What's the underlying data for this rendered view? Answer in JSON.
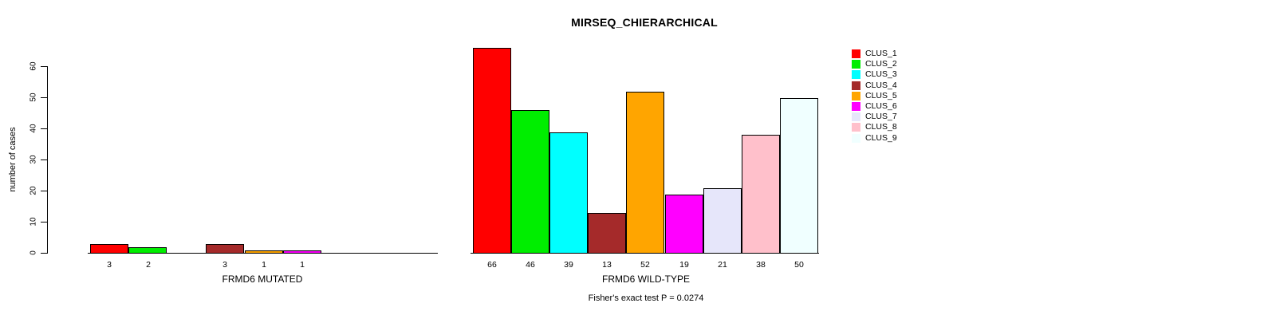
{
  "title": "MIRSEQ_CHIERARCHICAL",
  "chart_data": {
    "type": "bar",
    "title": "MIRSEQ_CHIERARCHICAL",
    "ylabel": "number of cases",
    "ylim": [
      0,
      60
    ],
    "yticks": [
      0,
      10,
      20,
      30,
      40,
      50,
      60
    ],
    "grid": false,
    "legend_position": "right",
    "categories": [
      "CLUS_1",
      "CLUS_2",
      "CLUS_3",
      "CLUS_4",
      "CLUS_5",
      "CLUS_6",
      "CLUS_7",
      "CLUS_8",
      "CLUS_9"
    ],
    "colors": [
      "#FF0000",
      "#00EE00",
      "#00FFFF",
      "#A52A2A",
      "#FFA500",
      "#FF00FF",
      "#E6E6FA",
      "#FFC0CB",
      "#F0FFFF"
    ],
    "series": [
      {
        "name": "FRMD6 MUTATED",
        "xlabel": "FRMD6 MUTATED",
        "values": [
          3,
          2,
          0,
          3,
          1,
          1,
          0,
          0,
          0
        ]
      },
      {
        "name": "FRMD6 WILD-TYPE",
        "xlabel": "FRMD6 WILD-TYPE",
        "values": [
          66,
          46,
          39,
          13,
          52,
          19,
          21,
          38,
          50
        ]
      }
    ],
    "bar_value_labels": true,
    "footnote": "Fisher's exact test P = 0.0274"
  },
  "legend": {
    "items": [
      {
        "label": "CLUS_1",
        "color": "#FF0000"
      },
      {
        "label": "CLUS_2",
        "color": "#00EE00"
      },
      {
        "label": "CLUS_3",
        "color": "#00FFFF"
      },
      {
        "label": "CLUS_4",
        "color": "#A52A2A"
      },
      {
        "label": "CLUS_5",
        "color": "#FFA500"
      },
      {
        "label": "CLUS_6",
        "color": "#FF00FF"
      },
      {
        "label": "CLUS_7",
        "color": "#E6E6FA"
      },
      {
        "label": "CLUS_8",
        "color": "#FFC0CB"
      },
      {
        "label": "CLUS_9",
        "color": "#F0FFFF"
      }
    ]
  }
}
